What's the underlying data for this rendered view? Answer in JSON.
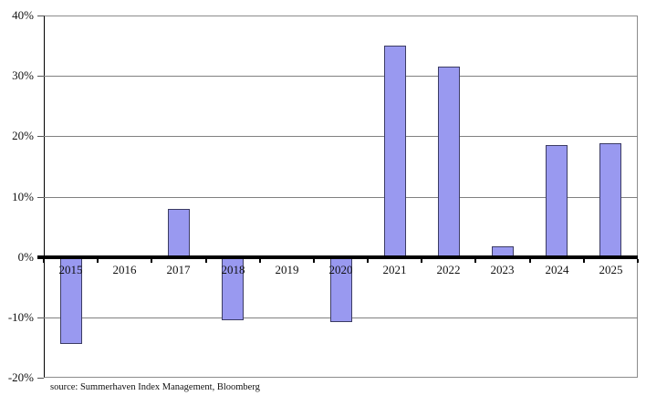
{
  "chart_data": {
    "type": "bar",
    "title": "",
    "xlabel": "",
    "ylabel": "",
    "categories": [
      "2015",
      "2016",
      "2017",
      "2018",
      "2019",
      "2020",
      "2021",
      "2022",
      "2023",
      "2024",
      "2025"
    ],
    "values": [
      -14.3,
      0,
      8.0,
      -10.5,
      0,
      -10.7,
      35.0,
      31.5,
      1.7,
      18.6,
      18.8
    ],
    "ylim": [
      -20,
      40
    ],
    "ytick_step": 10,
    "ytick_labels": [
      "40%",
      "30%",
      "20%",
      "10%",
      "0%",
      "-10%",
      "-20%"
    ],
    "grid": true,
    "legend": "none",
    "bar_color": "#9999f0",
    "bar_border_color": "#3c3c64",
    "gridline_color": "#808080",
    "zero_line_color": "#000000",
    "axis_color": "#000000"
  },
  "footer": {
    "source_note": "source: Summerhaven Index Management, Bloomberg"
  }
}
